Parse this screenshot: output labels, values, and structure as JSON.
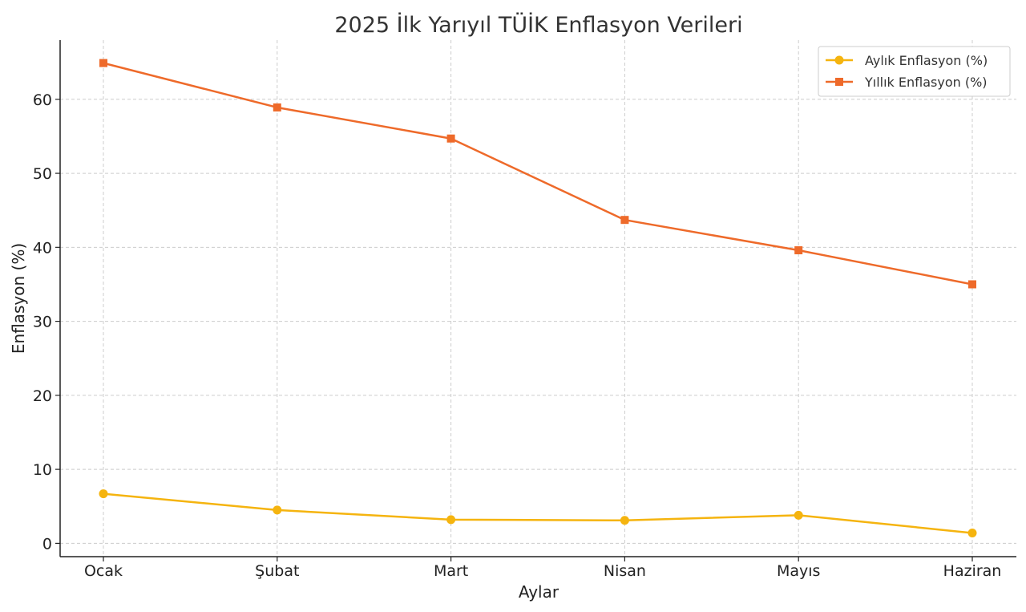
{
  "chart_data": {
    "type": "line",
    "title": "2025 İlk Yarıyıl TÜİK Enflasyon Verileri",
    "xlabel": "Aylar",
    "ylabel": "Enflasyon (%)",
    "categories": [
      "Ocak",
      "Şubat",
      "Mart",
      "Nisan",
      "Mayıs",
      "Haziran"
    ],
    "ylim": [
      -1.8,
      68
    ],
    "yticks": [
      0,
      10,
      20,
      30,
      40,
      50,
      60
    ],
    "grid": true,
    "legend_position": "top-right",
    "series": [
      {
        "name": "Aylık Enflasyon (%)",
        "color": "#F5B40F",
        "marker": "circle",
        "values": [
          6.7,
          4.5,
          3.2,
          3.1,
          3.8,
          1.4
        ]
      },
      {
        "name": "Yıllık Enflasyon (%)",
        "color": "#EE6A2A",
        "marker": "square",
        "values": [
          64.9,
          58.9,
          54.7,
          43.7,
          39.6,
          35.0
        ]
      }
    ]
  }
}
